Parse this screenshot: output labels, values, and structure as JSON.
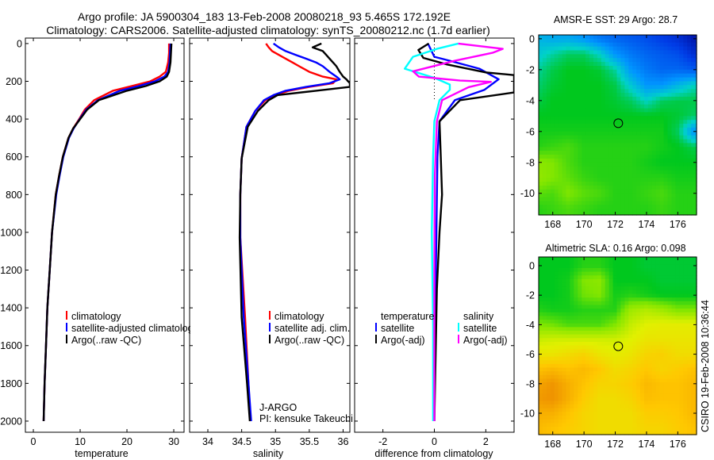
{
  "title": {
    "line1": "Argo profile: JA 5900304_183 13-Feb-2008 20080218_93 5.465S 172.192E",
    "line2": "Climatology: CARS2006. Satellite-adjusted climatology: synTS_20080212.nc (1.7d earlier)"
  },
  "credit": "CSIRO 19-Feb-2008 10:36:44",
  "colors": {
    "climatology": "#ff0000",
    "satellite": "#0000ff",
    "argo": "#000000",
    "sal_satellite": "#00ffff",
    "sal_argo": "#ff00ff"
  },
  "chart_data": [
    {
      "type": "line",
      "id": "temperature",
      "xlabel": "temperature",
      "ylabel": "",
      "xlim": [
        -1.7,
        32.2
      ],
      "ylim": [
        2059,
        -29
      ],
      "xticks": [
        0,
        10,
        20,
        30
      ],
      "yticks": [
        0,
        200,
        400,
        600,
        800,
        1000,
        1200,
        1400,
        1600,
        1800,
        2000
      ],
      "legend": {
        "position": "lower-center",
        "entries": [
          "climatology",
          "satellite-adjusted climatology",
          "Argo(..raw -QC)"
        ]
      },
      "depth": [
        0,
        50,
        100,
        150,
        175,
        200,
        225,
        250,
        300,
        350,
        400,
        450,
        500,
        600,
        700,
        800,
        1000,
        1200,
        1400,
        1600,
        1800,
        2000
      ],
      "series": [
        {
          "name": "climatology",
          "color": "#ff0000",
          "values": [
            29,
            29,
            28.8,
            28.3,
            27,
            25,
            21,
            17,
            13,
            11,
            9.8,
            8.5,
            7.5,
            6.3,
            5.5,
            4.8,
            4.0,
            3.5,
            3.0,
            2.7,
            2.4,
            2.2
          ]
        },
        {
          "name": "satellite-adjusted climatology",
          "color": "#0000ff",
          "values": [
            29.3,
            29.2,
            29.1,
            28.8,
            28,
            26,
            22.5,
            18.5,
            13.8,
            11.3,
            9.9,
            8.6,
            7.6,
            6.4,
            5.6,
            4.9,
            4.0,
            3.5,
            3.0,
            2.7,
            2.4,
            2.2
          ]
        },
        {
          "name": "Argo(..raw -QC)",
          "color": "#000000",
          "values": [
            29.5,
            29.4,
            29.3,
            29.0,
            28.5,
            27,
            24,
            20,
            14,
            11.5,
            10,
            8.5,
            7.5,
            6.3,
            5.5,
            4.8,
            4.0,
            3.5,
            3.0,
            2.7,
            2.4,
            2.2
          ]
        }
      ]
    },
    {
      "type": "line",
      "id": "salinity",
      "xlabel": "salinity",
      "xlim": [
        33.73,
        36.1
      ],
      "ylim": [
        2059,
        -29
      ],
      "xticks": [
        34,
        34.5,
        35,
        35.5,
        36
      ],
      "yticks": [
        0,
        200,
        400,
        600,
        800,
        1000,
        1200,
        1400,
        1600,
        1800,
        2000
      ],
      "legend": {
        "position": "lower-right",
        "entries": [
          "climatology",
          "satellite adj. clim.",
          "Argo(..raw -QC)"
        ]
      },
      "annotation": [
        "J-ARGO",
        "PI: kensuke Takeuchi"
      ],
      "depth": [
        0,
        20,
        40,
        60,
        80,
        100,
        120,
        150,
        175,
        190,
        210,
        230,
        250,
        273,
        300,
        357,
        441,
        609,
        800,
        1029,
        1450,
        1800,
        2000
      ],
      "series": [
        {
          "name": "climatology",
          "color": "#ff0000",
          "values": [
            34.86,
            34.9,
            34.95,
            35.05,
            35.15,
            35.25,
            35.35,
            35.5,
            35.7,
            35.9,
            35.85,
            35.5,
            35.2,
            35.0,
            34.85,
            34.7,
            34.57,
            34.5,
            34.48,
            34.48,
            34.55,
            34.6,
            34.63
          ]
        },
        {
          "name": "satellite adj. clim.",
          "color": "#0000ff",
          "values": [
            34.97,
            35.05,
            35.15,
            35.3,
            35.45,
            35.6,
            35.7,
            35.8,
            35.9,
            35.95,
            35.8,
            35.45,
            35.15,
            34.97,
            34.83,
            34.7,
            34.57,
            34.5,
            34.48,
            34.48,
            34.53,
            34.6,
            34.64
          ]
        },
        {
          "name": "Argo(..raw -QC)",
          "color": "#000000",
          "values": [
            35.68,
            35.55,
            35.7,
            35.75,
            35.8,
            35.85,
            35.9,
            35.95,
            36.0,
            36.05,
            36.1,
            36.1,
            35.6,
            35.03,
            34.9,
            34.74,
            34.59,
            34.5,
            34.48,
            34.47,
            34.5,
            34.58,
            34.62
          ]
        }
      ]
    },
    {
      "type": "line",
      "id": "difference",
      "xlabel": "difference from climatology",
      "xlim": [
        -3.1,
        3.1
      ],
      "ylim": [
        2059,
        -29
      ],
      "xticks": [
        -2,
        0,
        2
      ],
      "yticks": [
        0,
        200,
        400,
        600,
        800,
        1000,
        1200,
        1400,
        1600,
        1800,
        2000
      ],
      "legend": {
        "position": "lower-center",
        "headers": [
          "temperature",
          "salinity"
        ],
        "entries": [
          "satellite",
          "Argo(-adj)",
          "satellite",
          "Argo(-adj)"
        ]
      },
      "series": [
        {
          "name": "temperature satellite",
          "color": "#0000ff",
          "depth": [
            0,
            70,
            91,
            133,
            189,
            245,
            300,
            356,
            412,
            600,
            1000,
            1500,
            2000
          ],
          "values": [
            -0.25,
            0,
            0.6,
            1.75,
            2.5,
            1.95,
            0.8,
            0.5,
            0.2,
            0.12,
            0.08,
            0.03,
            0.0
          ]
        },
        {
          "name": "temperature Argo(-adj)",
          "color": "#000000",
          "depth": [
            0,
            34,
            76,
            111,
            153,
            167,
            259,
            300,
            356,
            412,
            600,
            800,
            1000,
            1300,
            2000
          ],
          "values": [
            -0.22,
            -0.62,
            -0.43,
            0.5,
            2.0,
            3.1,
            3.1,
            1.0,
            0.6,
            0.2,
            0.25,
            0.3,
            0.2,
            0.1,
            0.0
          ]
        },
        {
          "name": "salinity satellite",
          "color": "#00ffff",
          "depth": [
            0,
            28,
            70,
            133,
            182,
            217,
            245,
            300,
            412,
            600,
            1000,
            1500,
            2000
          ],
          "values": [
            0.93,
            0.1,
            -0.83,
            -1.15,
            0,
            0.6,
            0.6,
            0.2,
            0,
            -0.05,
            -0.1,
            -0.05,
            -0.05
          ]
        },
        {
          "name": "salinity Argo(-adj)",
          "color": "#ff00ff",
          "depth": [
            0,
            28,
            49,
            91,
            147,
            175,
            196,
            203,
            231,
            300,
            412,
            700,
            1200,
            2000
          ],
          "values": [
            0.93,
            2.66,
            2.26,
            0.8,
            -0.83,
            -0.6,
            1.0,
            2.2,
            1.33,
            0.3,
            0.1,
            0.02,
            0.0,
            0.0
          ]
        }
      ]
    },
    {
      "type": "heatmap",
      "id": "sst-map",
      "title": "AMSR-E SST: 29 Argo: 28.7",
      "xlim": [
        167.1,
        177.2
      ],
      "ylim": [
        -11.4,
        0.25
      ],
      "xticks": [
        168,
        170,
        172,
        174,
        176
      ],
      "yticks": [
        0,
        -2,
        -4,
        -6,
        -8,
        -10
      ],
      "float_position": {
        "lon": 172.192,
        "lat": -5.465
      },
      "lons": [
        167,
        168,
        169,
        170,
        171,
        172,
        173,
        174,
        175,
        176,
        177
      ],
      "lats": [
        0,
        -1,
        -2,
        -3,
        -4,
        -5,
        -6,
        -7,
        -8,
        -9,
        -10,
        -11
      ],
      "levels": [
        [
          0.35,
          0.33,
          0.33,
          0.3,
          0.25,
          0.22,
          0.2,
          0.18,
          0.15,
          0.12,
          0.06
        ],
        [
          0.38,
          0.42,
          0.45,
          0.45,
          0.4,
          0.3,
          0.25,
          0.22,
          0.2,
          0.18,
          0.12
        ],
        [
          0.42,
          0.46,
          0.48,
          0.48,
          0.47,
          0.42,
          0.3,
          0.25,
          0.22,
          0.22,
          0.2
        ],
        [
          0.44,
          0.47,
          0.48,
          0.48,
          0.48,
          0.46,
          0.38,
          0.3,
          0.3,
          0.35,
          0.4
        ],
        [
          0.46,
          0.48,
          0.48,
          0.48,
          0.48,
          0.47,
          0.45,
          0.4,
          0.45,
          0.46,
          0.46
        ],
        [
          0.48,
          0.48,
          0.48,
          0.48,
          0.48,
          0.48,
          0.48,
          0.48,
          0.48,
          0.47,
          0.45
        ],
        [
          0.49,
          0.49,
          0.49,
          0.49,
          0.49,
          0.49,
          0.49,
          0.49,
          0.49,
          0.45,
          0.3
        ],
        [
          0.5,
          0.51,
          0.52,
          0.5,
          0.5,
          0.5,
          0.5,
          0.5,
          0.49,
          0.48,
          0.46
        ],
        [
          0.56,
          0.55,
          0.52,
          0.5,
          0.5,
          0.5,
          0.5,
          0.49,
          0.48,
          0.48,
          0.48
        ],
        [
          0.57,
          0.55,
          0.53,
          0.51,
          0.5,
          0.5,
          0.5,
          0.5,
          0.5,
          0.49,
          0.49
        ],
        [
          0.53,
          0.52,
          0.55,
          0.53,
          0.52,
          0.5,
          0.5,
          0.51,
          0.52,
          0.5,
          0.5
        ],
        [
          0.5,
          0.51,
          0.52,
          0.51,
          0.5,
          0.5,
          0.5,
          0.5,
          0.51,
          0.5,
          0.5
        ]
      ]
    },
    {
      "type": "heatmap",
      "id": "sla-map",
      "title": "Altimetric SLA: 0.16 Argo: 0.098",
      "xlim": [
        167.1,
        177.2
      ],
      "ylim": [
        -11.45,
        0.59
      ],
      "xticks": [
        168,
        170,
        172,
        174,
        176
      ],
      "yticks": [
        0,
        -2,
        -4,
        -6,
        -8,
        -10
      ],
      "float_position": {
        "lon": 172.192,
        "lat": -5.465
      },
      "lons": [
        167,
        168,
        169,
        170,
        171,
        172,
        173,
        174,
        175,
        176,
        177
      ],
      "lats": [
        0,
        -1,
        -2,
        -3,
        -4,
        -5,
        -6,
        -7,
        -8,
        -9,
        -10,
        -11
      ],
      "levels": [
        [
          0.48,
          0.48,
          0.48,
          0.5,
          0.5,
          0.48,
          0.48,
          0.47,
          0.47,
          0.47,
          0.47
        ],
        [
          0.48,
          0.48,
          0.49,
          0.55,
          0.56,
          0.48,
          0.48,
          0.48,
          0.47,
          0.47,
          0.47
        ],
        [
          0.48,
          0.48,
          0.49,
          0.54,
          0.55,
          0.49,
          0.5,
          0.49,
          0.48,
          0.48,
          0.48
        ],
        [
          0.5,
          0.49,
          0.49,
          0.5,
          0.5,
          0.5,
          0.58,
          0.6,
          0.58,
          0.55,
          0.55
        ],
        [
          0.55,
          0.54,
          0.52,
          0.52,
          0.52,
          0.55,
          0.62,
          0.65,
          0.66,
          0.66,
          0.66
        ],
        [
          0.62,
          0.63,
          0.63,
          0.63,
          0.63,
          0.63,
          0.65,
          0.68,
          0.68,
          0.68,
          0.68
        ],
        [
          0.68,
          0.68,
          0.7,
          0.72,
          0.68,
          0.66,
          0.68,
          0.72,
          0.73,
          0.7,
          0.7
        ],
        [
          0.76,
          0.78,
          0.76,
          0.78,
          0.75,
          0.7,
          0.72,
          0.75,
          0.72,
          0.74,
          0.76
        ],
        [
          0.82,
          0.85,
          0.8,
          0.76,
          0.72,
          0.72,
          0.74,
          0.78,
          0.76,
          0.76,
          0.78
        ],
        [
          0.84,
          0.86,
          0.8,
          0.74,
          0.7,
          0.7,
          0.72,
          0.77,
          0.76,
          0.76,
          0.78
        ],
        [
          0.8,
          0.8,
          0.76,
          0.72,
          0.7,
          0.7,
          0.7,
          0.74,
          0.74,
          0.75,
          0.78
        ],
        [
          0.78,
          0.76,
          0.74,
          0.72,
          0.7,
          0.7,
          0.7,
          0.72,
          0.72,
          0.74,
          0.76
        ]
      ]
    }
  ]
}
